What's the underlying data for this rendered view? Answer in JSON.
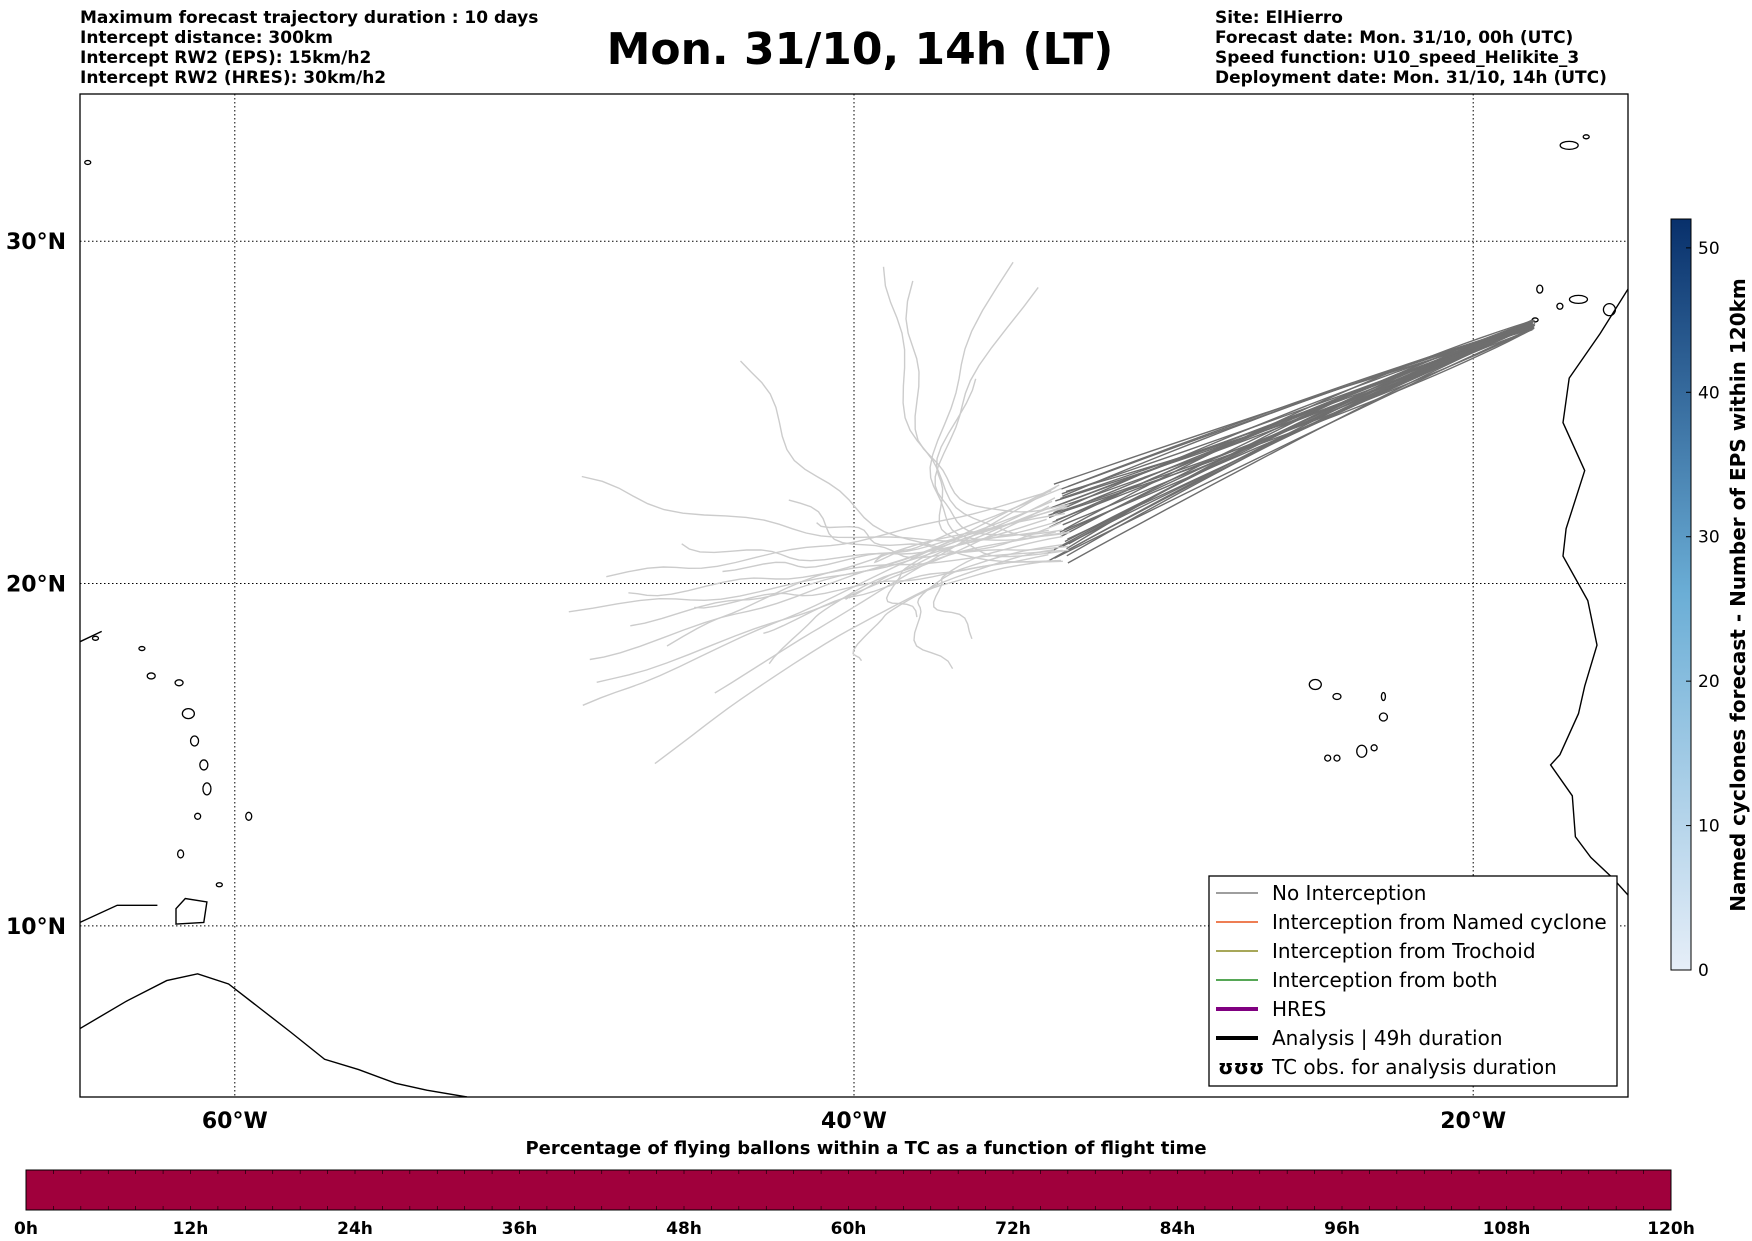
{
  "header": {
    "left_lines": [
      "Maximum forecast trajectory duration : 10 days",
      "Intercept distance: 300km",
      "Intercept RW2 (EPS):  15km/h2",
      "Intercept RW2 (HRES): 30km/h2"
    ],
    "title": "Mon. 31/10, 14h (LT)",
    "right_lines": [
      "Site: ElHierro",
      "Forecast date: Mon. 31/10, 00h (UTC)",
      "Speed function: U10_speed_Helikite_3",
      "Deployment date: Mon. 31/10, 14h (UTC)"
    ]
  },
  "map": {
    "lon_range": [
      -65,
      -15
    ],
    "lat_range": [
      5,
      34.3
    ],
    "lat_ticks": [
      {
        "value": 30,
        "label": "30°N"
      },
      {
        "value": 20,
        "label": "20°N"
      },
      {
        "value": 10,
        "label": "10°N"
      }
    ],
    "lon_ticks": [
      {
        "value": -60,
        "label": "60°W"
      },
      {
        "value": -40,
        "label": "40°W"
      },
      {
        "value": -20,
        "label": "20°W"
      }
    ],
    "launch_site": {
      "lon": -18.0,
      "lat": 27.7
    },
    "colors": {
      "far_trajectory": "#cccccc",
      "near_trajectory": "#6e6e6e",
      "coast": "#000000"
    }
  },
  "legend": {
    "items": [
      {
        "label": "No Interception",
        "color": "#7f7f7f",
        "style": "thin"
      },
      {
        "label": "Interception from Named cyclone",
        "color": "#e8541c",
        "style": "thin"
      },
      {
        "label": "Interception from Trochoid",
        "color": "#8a8a22",
        "style": "thin"
      },
      {
        "label": "Interception from both",
        "color": "#1e8a1e",
        "style": "thin"
      },
      {
        "label": "HRES",
        "color": "#800080",
        "style": "thick"
      },
      {
        "label": "Analysis | 49h duration",
        "color": "#000000",
        "style": "thick"
      },
      {
        "label": "TC obs. for analysis duration",
        "color": "#000000",
        "style": "symbol",
        "symbol": "ʊʊʊ"
      }
    ]
  },
  "colorbar": {
    "label": "Named cyclones forecast - Number of EPS within 120km",
    "ticks": [
      0,
      10,
      20,
      30,
      40,
      50
    ],
    "max": 52,
    "color_low": "#e6eef8",
    "color_high": "#08306b"
  },
  "flight_bar": {
    "title": "Percentage of flying ballons within a TC as a function of flight time",
    "ticks": [
      "0h",
      "12h",
      "24h",
      "36h",
      "48h",
      "60h",
      "72h",
      "84h",
      "96h",
      "108h",
      "120h"
    ],
    "color": "#a0003c"
  }
}
